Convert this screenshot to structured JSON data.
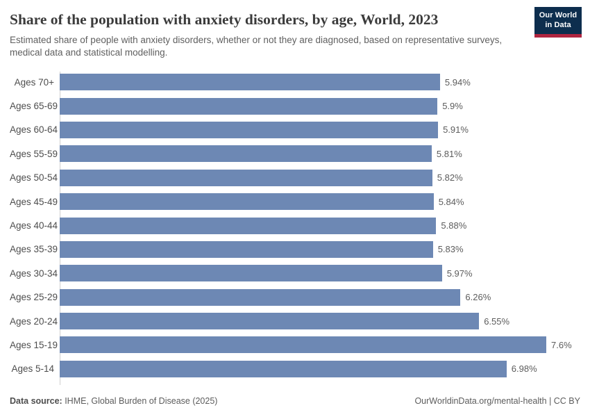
{
  "header": {
    "title": "Share of the population with anxiety disorders, by age, World, 2023",
    "subtitle": "Estimated share of people with anxiety disorders, whether or not they are diagnosed, based on representative surveys, medical data and statistical modelling.",
    "logo": {
      "line1": "Our World",
      "line2": "in Data"
    }
  },
  "chart_data": {
    "type": "bar",
    "orientation": "horizontal",
    "title": "Share of the population with anxiety disorders, by age, World, 2023",
    "categories": [
      "Ages 70+",
      "Ages 65-69",
      "Ages 60-64",
      "Ages 55-59",
      "Ages 50-54",
      "Ages 45-49",
      "Ages 40-44",
      "Ages 35-39",
      "Ages 30-34",
      "Ages 25-29",
      "Ages 20-24",
      "Ages 15-19",
      "Ages 5-14"
    ],
    "values": [
      5.94,
      5.9,
      5.91,
      5.81,
      5.82,
      5.84,
      5.88,
      5.83,
      5.97,
      6.26,
      6.55,
      7.6,
      6.98
    ],
    "value_labels": [
      "5.94%",
      "5.9%",
      "5.91%",
      "5.81%",
      "5.82%",
      "5.84%",
      "5.88%",
      "5.83%",
      "5.97%",
      "6.26%",
      "6.55%",
      "7.6%",
      "6.98%"
    ],
    "xlabel": "",
    "ylabel": "",
    "xlim": [
      0,
      7.6
    ],
    "grid": false,
    "legend": false,
    "bar_color": "#6d88b4"
  },
  "footer": {
    "source_label": "Data source:",
    "source_text": " IHME, Global Burden of Disease (2025)",
    "right_text": "OurWorldinData.org/mental-health | CC BY"
  },
  "colors": {
    "bar": "#6d88b4",
    "title": "#3b3b3b",
    "subtitle": "#5f5f5f",
    "axis_line": "#cfcfcf",
    "logo_bg": "#0d2e4e",
    "logo_accent": "#b02540"
  }
}
